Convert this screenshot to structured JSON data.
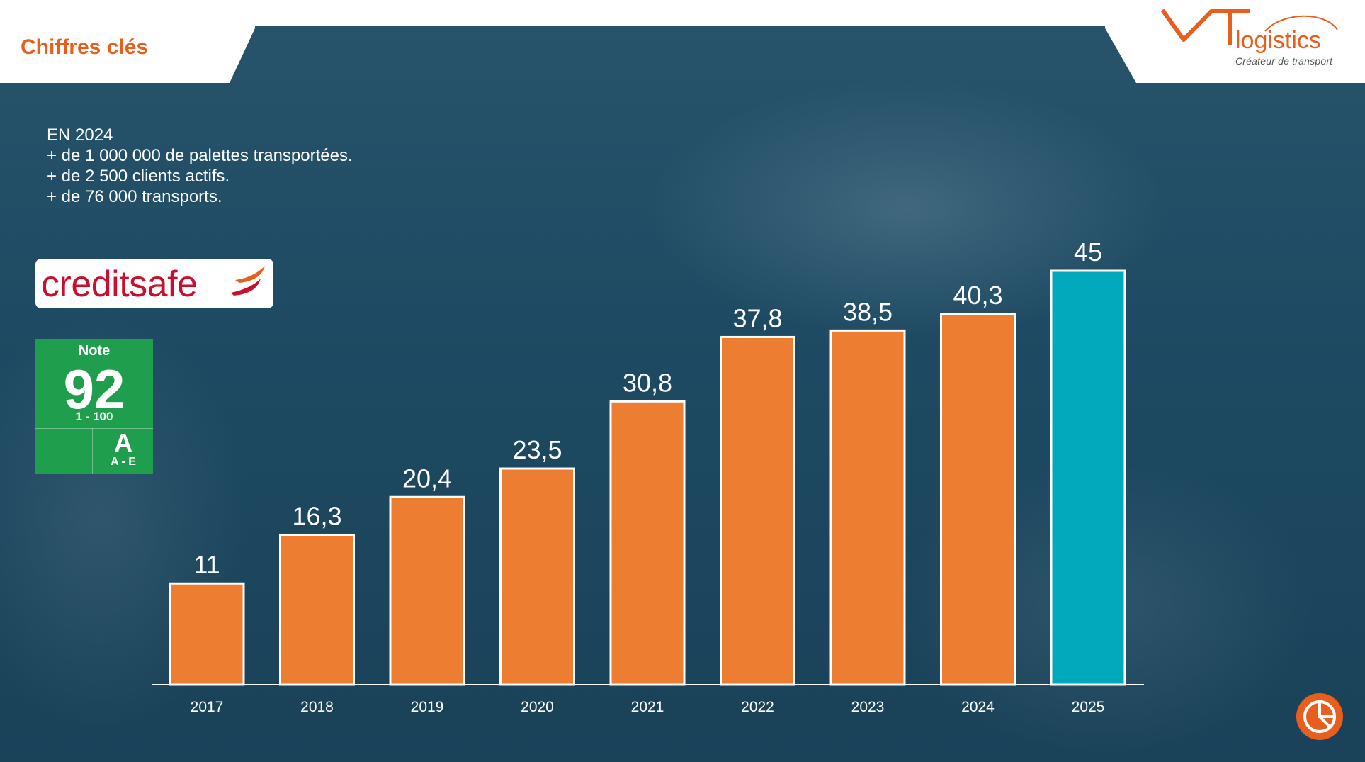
{
  "header": {
    "title": "Chiffres clés",
    "logo_main": "logistics",
    "logo_sub": "Créateur de transport"
  },
  "facts": [
    "EN 2024",
    "+ de 1 000 000 de palettes transportées.",
    "+ de 2 500 clients actifs.",
    "+ de 76 000 transports."
  ],
  "creditsafe": {
    "brand": "creditsafe",
    "note_label": "Note",
    "score": "92",
    "score_range": "1 - 100",
    "grade": "A",
    "grade_range": "A - E"
  },
  "colors": {
    "accent": "#e85e1c",
    "bar": "#ed7d31",
    "highlight_bar": "#00a9bb",
    "score_green": "#1f9e4d"
  },
  "chart_data": {
    "type": "bar",
    "categories": [
      "2017",
      "2018",
      "2019",
      "2020",
      "2021",
      "2022",
      "2023",
      "2024",
      "2025"
    ],
    "values": [
      11,
      16.3,
      20.4,
      23.5,
      30.8,
      37.8,
      38.5,
      40.3,
      45
    ],
    "value_labels": [
      "11",
      "16,3",
      "20,4",
      "23,5",
      "30,8",
      "37,8",
      "38,5",
      "40,3",
      "45"
    ],
    "highlight_index": 8,
    "title": "",
    "xlabel": "",
    "ylabel": "",
    "ylim": [
      0,
      45
    ],
    "grid": false,
    "legend": "none"
  },
  "icons": {
    "corner": "pie-chart-icon"
  }
}
